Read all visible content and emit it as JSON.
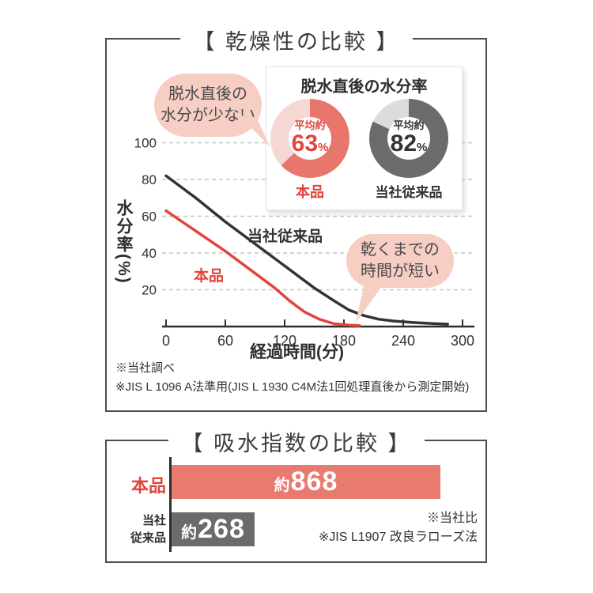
{
  "panel_drying": {
    "title": "【 乾燥性の比較 】",
    "bubble_less_moisture": [
      "脱水直後の",
      "水分が少ない"
    ],
    "bubble_dry_fast": [
      "乾くまでの",
      "時間が短い"
    ],
    "moisture_card": {
      "title": "脱水直後の水分率",
      "donuts": [
        {
          "prefix": "平均約",
          "value": 63,
          "unit": "%",
          "label": "本品",
          "color": "#e8766c",
          "remainder_color": "#f5d8d3",
          "text_color": "#e0453c"
        },
        {
          "prefix": "平均約",
          "value": 82,
          "unit": "%",
          "label": "当社従来品",
          "color": "#6b6b6b",
          "remainder_color": "#dcdcdc",
          "text_color": "#333333"
        }
      ]
    },
    "line_labels": {
      "product": "本品",
      "conventional": "当社従来品"
    },
    "footnotes": [
      "※当社調べ",
      "※JIS L 1096 A法準用(JIS L 1930 C4M法1回処理直後から測定開始)"
    ]
  },
  "panel_absorption": {
    "title": "【 吸水指数の比較 】",
    "footnotes": [
      "※当社比",
      "※JIS L1907 改良ラローズ法"
    ]
  },
  "colors": {
    "accent_red": "#e0453c",
    "salmon": "#e8766c",
    "bar_red": "#e87a70",
    "bar_gray": "#6b6b6b",
    "bubble_pink": "#f6cec3",
    "line_black": "#333333",
    "grid_gray": "#c6c6c6"
  },
  "chart_data": [
    {
      "type": "line",
      "title": "乾燥性の比較",
      "xlabel": "経過時間(分)",
      "ylabel": "水分率(%)",
      "xlim": [
        0,
        300
      ],
      "ylim": [
        0,
        100
      ],
      "xticks": [
        0,
        60,
        120,
        180,
        240,
        300
      ],
      "yticks": [
        20,
        40,
        60,
        80,
        100
      ],
      "grid": "horizontal-dashed",
      "legend_position": "inline-labels",
      "series": [
        {
          "name": "当社従来品",
          "color": "#333333",
          "points": [
            [
              0,
              82
            ],
            [
              30,
              70
            ],
            [
              60,
              57
            ],
            [
              90,
              45
            ],
            [
              120,
              33
            ],
            [
              150,
              21
            ],
            [
              170,
              14
            ],
            [
              185,
              9
            ],
            [
              200,
              6
            ],
            [
              215,
              4
            ],
            [
              230,
              3
            ],
            [
              250,
              2.2
            ],
            [
              270,
              1.6
            ],
            [
              285,
              1.3
            ]
          ]
        },
        {
          "name": "本品",
          "color": "#e0453c",
          "points": [
            [
              0,
              63
            ],
            [
              30,
              52
            ],
            [
              60,
              41
            ],
            [
              90,
              29
            ],
            [
              110,
              21
            ],
            [
              125,
              14
            ],
            [
              140,
              8
            ],
            [
              155,
              4
            ],
            [
              170,
              1.5
            ],
            [
              185,
              0.8
            ],
            [
              196,
              0.5
            ]
          ]
        }
      ]
    },
    {
      "type": "pie",
      "variant": "donut",
      "title": "脱水直後の水分率",
      "slices": [
        {
          "label": "本品",
          "value": 63,
          "display": "平均約63%"
        },
        {
          "label": "当社従来品",
          "value": 82,
          "display": "平均約82%"
        }
      ]
    },
    {
      "type": "bar",
      "orientation": "horizontal",
      "title": "吸水指数の比較",
      "categories": [
        "本品",
        "当社従来品"
      ],
      "categories_display": [
        [
          "本品"
        ],
        [
          "当社",
          "従来品"
        ]
      ],
      "values": [
        868,
        268
      ],
      "value_labels": [
        {
          "prefix": "約",
          "number": "868"
        },
        {
          "prefix": "約",
          "number": "268"
        }
      ]
    }
  ]
}
